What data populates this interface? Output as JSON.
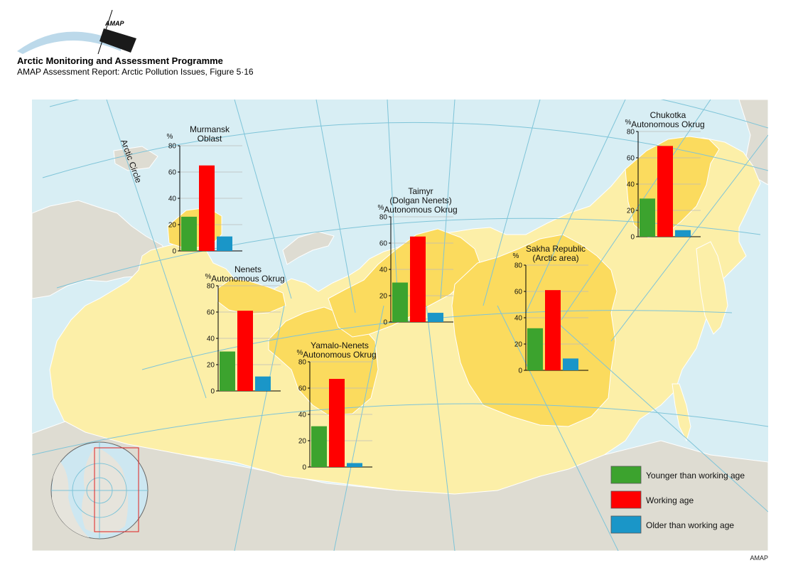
{
  "header": {
    "logo_text": "AMAP",
    "org_name": "Arctic Monitoring and Assessment Programme",
    "report_title": "AMAP Assessment Report: Arctic Pollution Issues, Figure 5·16"
  },
  "map": {
    "arctic_circle_label": "Arctic Circle",
    "colors": {
      "sea": "#d8eef4",
      "land_other": "#dedcd2",
      "russia": "#fcefa8",
      "highlight_region": "#fbdb5e",
      "graticule": "#7ec4d8",
      "border": "#ffffff"
    }
  },
  "legend": {
    "items": [
      {
        "label": "Younger than working age",
        "color": "#3ca32e"
      },
      {
        "label": "Working age",
        "color": "#ff0000"
      },
      {
        "label": "Older than working age",
        "color": "#1a96c8"
      }
    ]
  },
  "chart_data": [
    {
      "type": "bar",
      "title": "Murmansk Oblast",
      "title_lines": [
        "Murmansk",
        "Oblast"
      ],
      "ylabel": "%",
      "ylim": [
        0,
        80
      ],
      "yticks": [
        0,
        20,
        40,
        60,
        80
      ],
      "categories": [
        "Younger than working age",
        "Working age",
        "Older than working age"
      ],
      "values": [
        26,
        65,
        11
      ]
    },
    {
      "type": "bar",
      "title": "Nenets Autonomous Okrug",
      "title_lines": [
        "Nenets",
        "Autonomous Okrug"
      ],
      "ylabel": "%",
      "ylim": [
        0,
        80
      ],
      "yticks": [
        0,
        20,
        40,
        60,
        80
      ],
      "categories": [
        "Younger than working age",
        "Working age",
        "Older than working age"
      ],
      "values": [
        30,
        61,
        11
      ]
    },
    {
      "type": "bar",
      "title": "Yamalo-Nenets Autonomous Okrug",
      "title_lines": [
        "Yamalo-Nenets",
        "Autonomous Okrug"
      ],
      "ylabel": "%",
      "ylim": [
        0,
        80
      ],
      "yticks": [
        0,
        20,
        40,
        60,
        80
      ],
      "categories": [
        "Younger than working age",
        "Working age",
        "Older than working age"
      ],
      "values": [
        31,
        67,
        3
      ]
    },
    {
      "type": "bar",
      "title": "Taimyr (Dolgan Nenets) Autonomous Okrug",
      "title_lines": [
        "Taimyr",
        "(Dolgan Nenets)",
        "Autonomous Okrug"
      ],
      "ylabel": "%",
      "ylim": [
        0,
        80
      ],
      "yticks": [
        0,
        20,
        40,
        60,
        80
      ],
      "categories": [
        "Younger than working age",
        "Working age",
        "Older than working age"
      ],
      "values": [
        30,
        65,
        7
      ]
    },
    {
      "type": "bar",
      "title": "Sakha Republic (Arctic area)",
      "title_lines": [
        "Sakha Republic",
        "(Arctic area)"
      ],
      "ylabel": "%",
      "ylim": [
        0,
        80
      ],
      "yticks": [
        0,
        20,
        40,
        60,
        80
      ],
      "categories": [
        "Younger than working age",
        "Working age",
        "Older than working age"
      ],
      "values": [
        32,
        61,
        9
      ]
    },
    {
      "type": "bar",
      "title": "Chukotka Autonomous Okrug",
      "title_lines": [
        "Chukotka",
        "Autonomous Okrug"
      ],
      "ylabel": "%",
      "ylim": [
        0,
        80
      ],
      "yticks": [
        0,
        20,
        40,
        60,
        80
      ],
      "categories": [
        "Younger than working age",
        "Working age",
        "Older than working age"
      ],
      "values": [
        29,
        69,
        5
      ]
    }
  ],
  "credit": "AMAP"
}
